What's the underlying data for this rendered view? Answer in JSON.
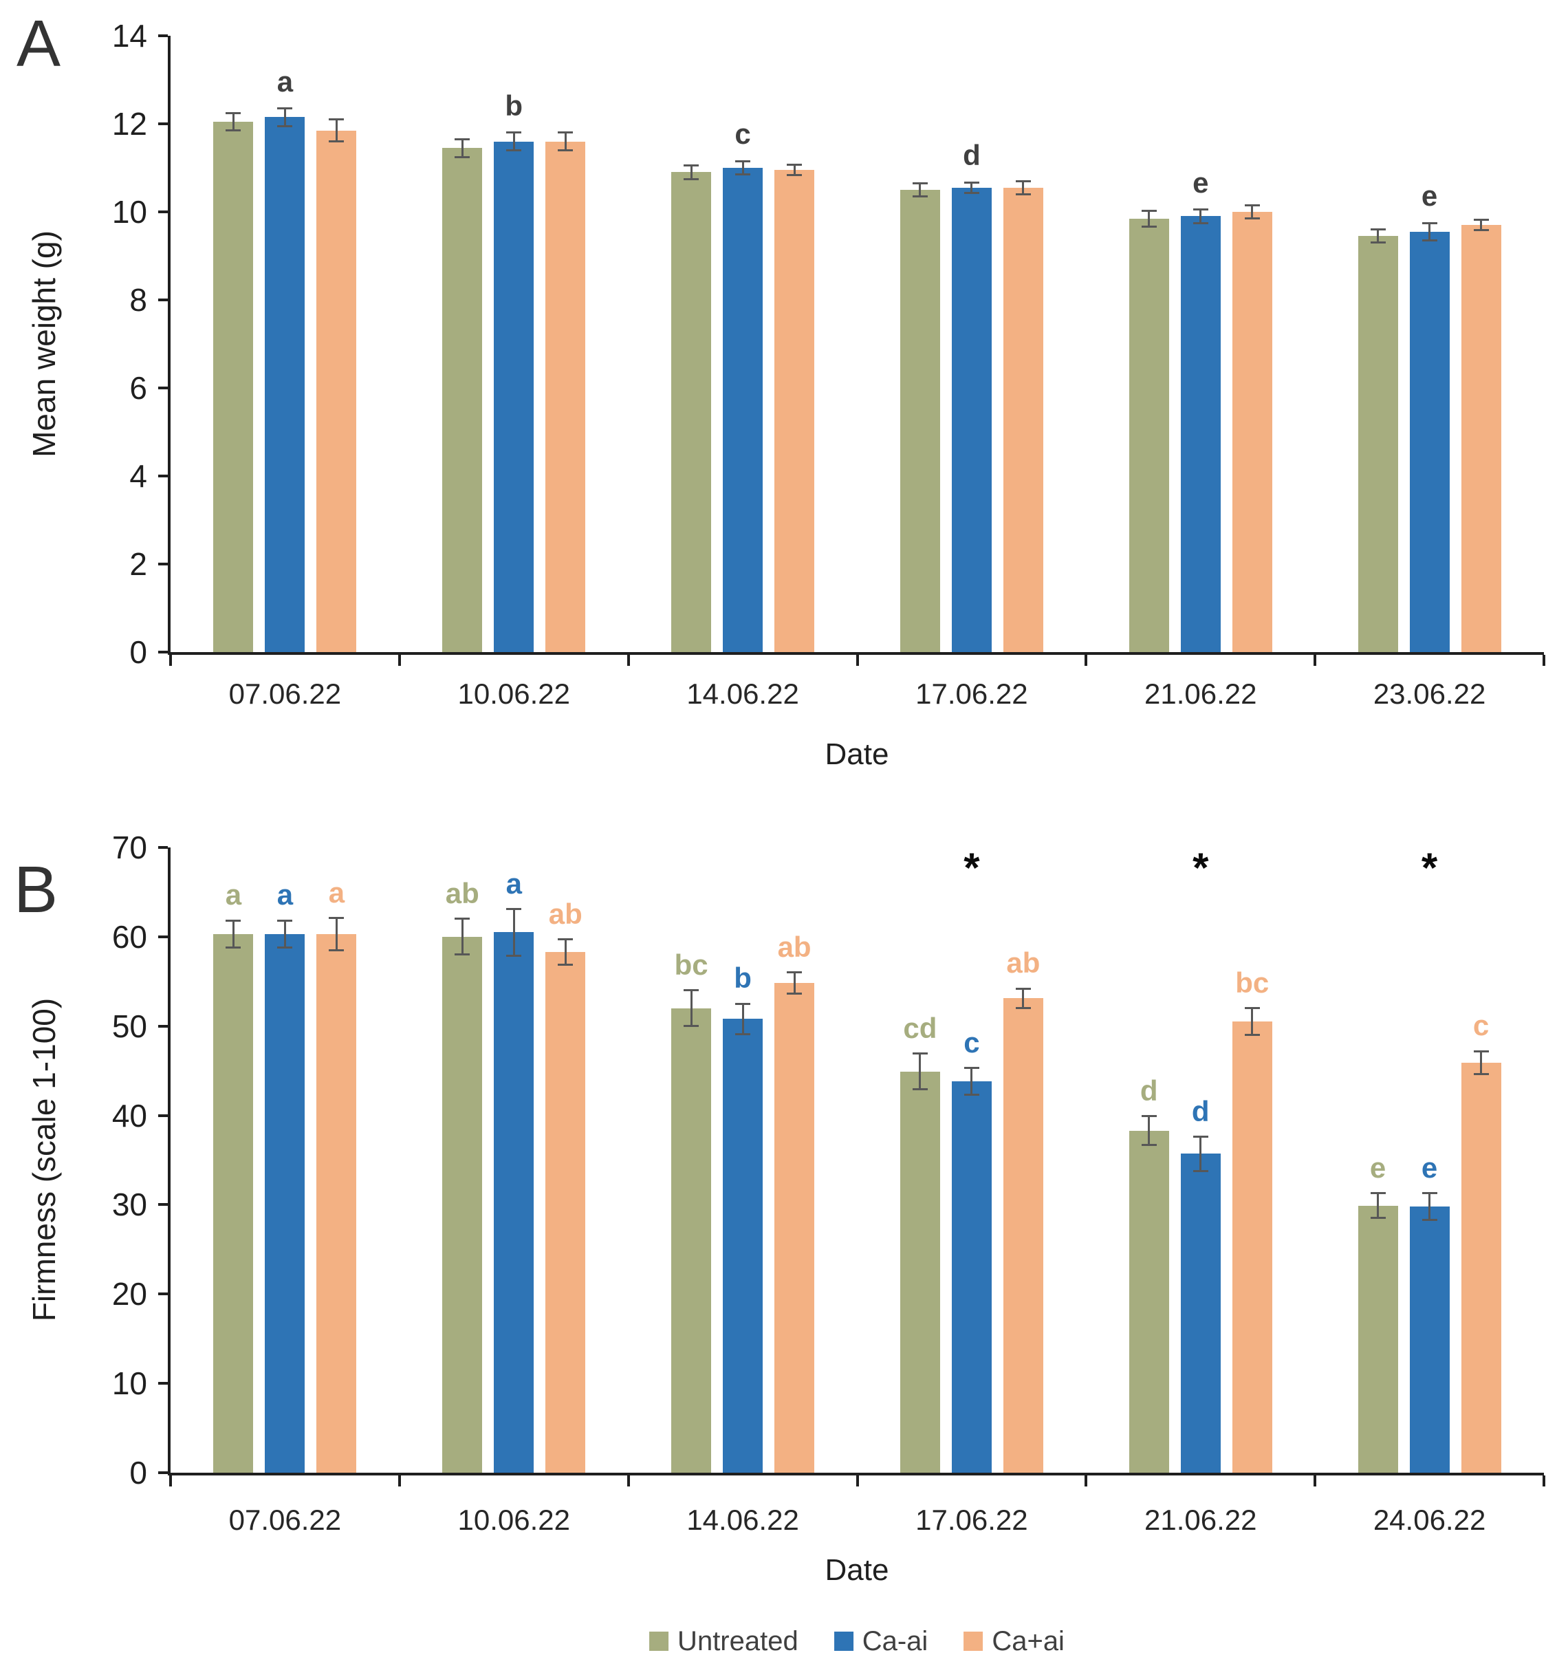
{
  "chart_data": [
    {
      "type": "bar",
      "panel_label": "A",
      "xlabel": "Date",
      "ylabel": "Mean weight (g)",
      "ylim": [
        0,
        14
      ],
      "ytick_step": 2,
      "grid": false,
      "legend_position": "none",
      "categories": [
        "07.06.22",
        "10.06.22",
        "14.06.22",
        "17.06.22",
        "21.06.22",
        "23.06.22"
      ],
      "series": [
        {
          "name": "Untreated",
          "color": "#A6AD7F",
          "values": [
            12.05,
            11.45,
            10.9,
            10.5,
            9.85,
            9.45
          ],
          "errors": [
            0.2,
            0.2,
            0.15,
            0.15,
            0.18,
            0.15
          ]
        },
        {
          "name": "Ca-ai",
          "color": "#2E74B5",
          "values": [
            12.15,
            11.6,
            11.0,
            10.55,
            9.9,
            9.55
          ],
          "errors": [
            0.2,
            0.2,
            0.15,
            0.12,
            0.15,
            0.2
          ]
        },
        {
          "name": "Ca+ai",
          "color": "#F3B183",
          "values": [
            11.85,
            11.6,
            10.95,
            10.55,
            10.0,
            9.7
          ],
          "errors": [
            0.25,
            0.2,
            0.12,
            0.15,
            0.15,
            0.12
          ]
        }
      ],
      "group_letters": [
        "a",
        "b",
        "c",
        "d",
        "e",
        "e"
      ],
      "group_letter_color": "#404040"
    },
    {
      "type": "bar",
      "panel_label": "B",
      "xlabel": "Date",
      "ylabel": "Firmness (scale 1-100)",
      "ylim": [
        0,
        70
      ],
      "ytick_step": 10,
      "grid": false,
      "legend_position": "bottom",
      "categories": [
        "07.06.22",
        "10.06.22",
        "14.06.22",
        "17.06.22",
        "21.06.22",
        "24.06.22"
      ],
      "series": [
        {
          "name": "Untreated",
          "color": "#A6AD7F",
          "values": [
            60.3,
            60.0,
            52.0,
            44.9,
            38.3,
            29.9
          ],
          "errors": [
            1.5,
            2.0,
            2.0,
            2.0,
            1.6,
            1.4
          ],
          "letters": [
            "a",
            "ab",
            "bc",
            "cd",
            "d",
            "e"
          ]
        },
        {
          "name": "Ca-ai",
          "color": "#2E74B5",
          "values": [
            60.3,
            60.5,
            50.8,
            43.8,
            35.7,
            29.8
          ],
          "errors": [
            1.5,
            2.6,
            1.7,
            1.5,
            1.9,
            1.5
          ],
          "letters": [
            "a",
            "a",
            "b",
            "c",
            "d",
            "e"
          ]
        },
        {
          "name": "Ca+ai",
          "color": "#F3B183",
          "values": [
            60.3,
            58.3,
            54.8,
            53.1,
            50.5,
            45.9
          ],
          "errors": [
            1.8,
            1.4,
            1.2,
            1.1,
            1.5,
            1.3
          ],
          "letters": [
            "a",
            "ab",
            "ab",
            "ab",
            "bc",
            "c"
          ]
        }
      ],
      "significance_marker": "*",
      "significant_groups": [
        3,
        4,
        5
      ]
    }
  ],
  "legend": {
    "items": [
      {
        "label": "Untreated",
        "color": "#A6AD7F"
      },
      {
        "label": "Ca-ai",
        "color": "#2E74B5"
      },
      {
        "label": "Ca+ai",
        "color": "#F3B183"
      }
    ]
  },
  "colors": {
    "error_bar": "#575757",
    "axis": "#1f1f1f",
    "text": "#262626"
  }
}
